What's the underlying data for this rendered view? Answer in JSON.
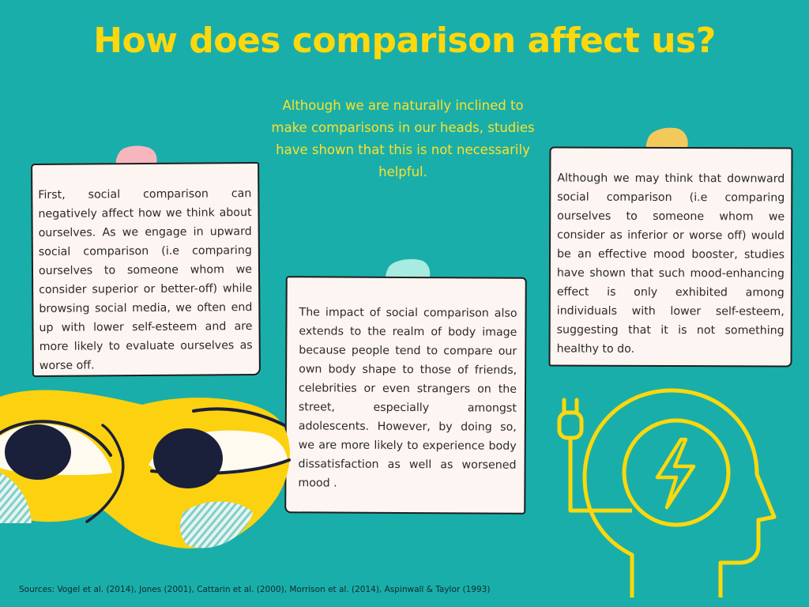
{
  "title": "How does comparison affect us?",
  "intro": "Although we are naturally inclined to make comparisons in our heads, studies have shown that this is not necessarily helpful.",
  "notes": [
    {
      "text": "First, social comparison can negatively affect how we think about ourselves. As we engage in upward social comparison (i.e comparing ourselves to someone whom we consider superior or better-off) while browsing social media, we often end up with lower self-esteem and are more likely to evaluate ourselves as worse off.",
      "pin_color": "#f7b6bd"
    },
    {
      "text": "The impact of social comparison also extends to the realm of body image because people tend to compare our own body shape to those of friends, celebrities or even strangers on the street, especially amongst adolescents. However, by doing so, we are more likely to experience body dissatisfaction as well as worsened mood .",
      "pin_color": "#a8ebe0"
    },
    {
      "text": "Although we may think that downward social comparison (i.e comparing ourselves to someone whom we consider as inferior or worse off) would be an effective mood booster, studies have shown that such mood-enhancing effect is only exhibited among individuals with lower self-esteem, suggesting that it is not something healthy to do.",
      "pin_color": "#f3c95c"
    }
  ],
  "sources": "Sources: Vogel et al. (2014), Jones (2001),  Cattarin et al. (2000), Morrison et al. (2014), Aspinwall & Taylor (1993)",
  "colors": {
    "background": "#1aaeaa",
    "accent": "#fcd80c",
    "note": "#fdf5f1",
    "ink": "#1e1e1e"
  },
  "icons": [
    "face-eyes-illustration",
    "head-lightning-icon",
    "power-plug-icon"
  ]
}
